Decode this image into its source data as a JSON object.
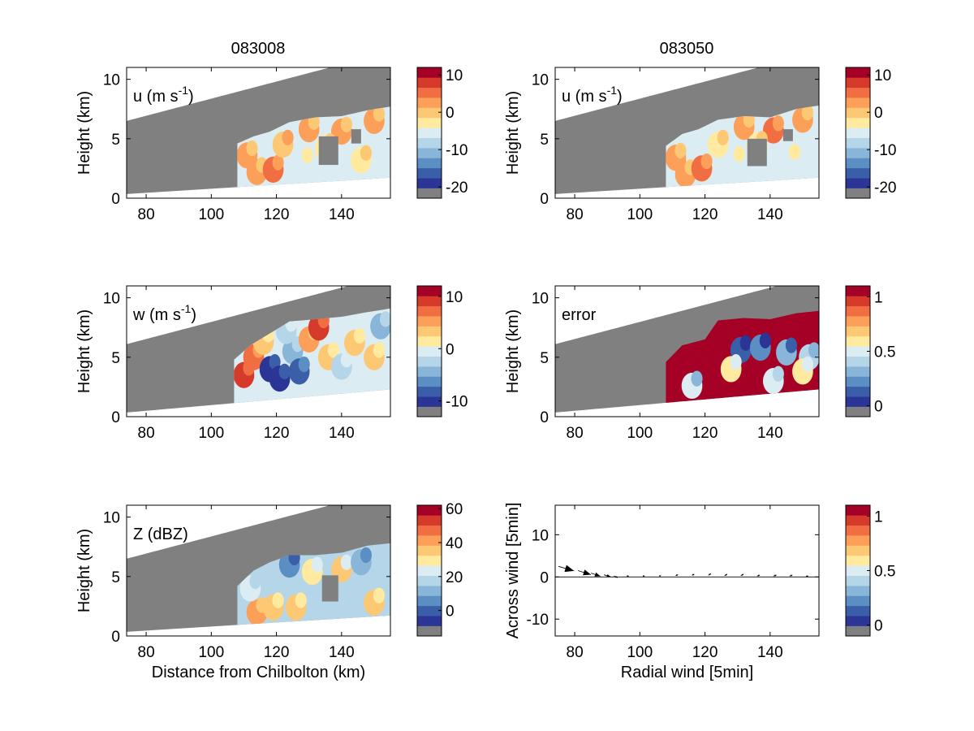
{
  "figure": {
    "left_title": "083008",
    "right_title": "083050"
  },
  "colors": {
    "missing": "#808080",
    "background": "#ffffff",
    "palette": [
      "#2b3595",
      "#3a5fa8",
      "#5b8ec2",
      "#89b6d8",
      "#b5d6e8",
      "#dcecf3",
      "#ffeaa0",
      "#fdc873",
      "#fb9f59",
      "#f06e42",
      "#d63a2a",
      "#a50026"
    ]
  },
  "chart_data": [
    {
      "id": "u-left",
      "type": "heatmap",
      "label": "u (m s",
      "label_sup": "-1",
      "label_close": ")",
      "xlim": [
        74,
        155
      ],
      "ylim": [
        0,
        11
      ],
      "xticks": [
        80,
        100,
        120,
        140
      ],
      "yticks": [
        0,
        5,
        10
      ],
      "xlabel": "",
      "ylabel": "Height (km)",
      "colorbar": {
        "ticks": [
          "10",
          "0",
          "-10",
          "-20"
        ],
        "tick_values": [
          10,
          0,
          -10,
          -20
        ],
        "range": [
          -23,
          12
        ]
      },
      "region": {
        "x_start": 108,
        "top": [
          [
            108,
            4.6
          ],
          [
            113,
            5.2
          ],
          [
            118,
            5.6
          ],
          [
            124,
            6.4
          ],
          [
            132,
            6.8
          ],
          [
            140,
            6.9
          ],
          [
            148,
            7.4
          ],
          [
            155,
            7.7
          ]
        ]
      },
      "blobs": [
        {
          "x": 114,
          "y": 2.2,
          "value": 2
        },
        {
          "x": 119,
          "y": 2.4,
          "value": 4
        },
        {
          "x": 111,
          "y": 3.6,
          "value": 1
        },
        {
          "x": 122,
          "y": 4.5,
          "value": -2
        },
        {
          "x": 130,
          "y": 5.8,
          "value": 1
        },
        {
          "x": 140,
          "y": 5.6,
          "value": 3
        },
        {
          "x": 150,
          "y": 6.5,
          "value": 3
        },
        {
          "x": 146,
          "y": 3.2,
          "value": -5
        },
        {
          "x": 128,
          "y": 3.0,
          "value": -7
        },
        {
          "x": 135,
          "y": 4.2,
          "value": -4
        }
      ],
      "gaps": [
        {
          "x": 133,
          "y": 2.8,
          "w": 6,
          "h": 2.4
        },
        {
          "x": 143,
          "y": 4.6,
          "w": 3,
          "h": 1.2
        }
      ]
    },
    {
      "id": "u-right",
      "type": "heatmap",
      "label": "u (m s",
      "label_sup": "-1",
      "label_close": ")",
      "xlim": [
        74,
        155
      ],
      "ylim": [
        0,
        11
      ],
      "xticks": [
        80,
        100,
        120,
        140
      ],
      "yticks": [
        0,
        5,
        10
      ],
      "xlabel": "",
      "ylabel": "Height (km)",
      "colorbar": {
        "ticks": [
          "10",
          "0",
          "-10",
          "-20"
        ],
        "tick_values": [
          10,
          0,
          -10,
          -20
        ],
        "range": [
          -23,
          12
        ]
      },
      "region": {
        "x_start": 108,
        "top": [
          [
            108,
            4.4
          ],
          [
            113,
            5.4
          ],
          [
            118,
            5.8
          ],
          [
            124,
            6.6
          ],
          [
            132,
            6.9
          ],
          [
            140,
            6.8
          ],
          [
            148,
            7.5
          ],
          [
            155,
            7.8
          ]
        ]
      },
      "blobs": [
        {
          "x": 114,
          "y": 2.0,
          "value": 3
        },
        {
          "x": 119,
          "y": 2.5,
          "value": 5
        },
        {
          "x": 111,
          "y": 3.4,
          "value": 1
        },
        {
          "x": 124,
          "y": 4.5,
          "value": -3
        },
        {
          "x": 132,
          "y": 6.0,
          "value": 2
        },
        {
          "x": 141,
          "y": 5.7,
          "value": 4
        },
        {
          "x": 150,
          "y": 6.6,
          "value": 2
        },
        {
          "x": 146,
          "y": 3.3,
          "value": -6
        },
        {
          "x": 129,
          "y": 3.1,
          "value": -6
        },
        {
          "x": 136,
          "y": 4.4,
          "value": -3
        }
      ],
      "gaps": [
        {
          "x": 133,
          "y": 2.7,
          "w": 6,
          "h": 2.3
        },
        {
          "x": 144,
          "y": 4.8,
          "w": 3,
          "h": 1.0
        }
      ]
    },
    {
      "id": "w-left",
      "type": "heatmap",
      "label": "w (m s",
      "label_sup": "-1",
      "label_close": ")",
      "xlim": [
        74,
        155
      ],
      "ylim": [
        0,
        11
      ],
      "xticks": [
        80,
        100,
        120,
        140
      ],
      "yticks": [
        0,
        5,
        10
      ],
      "xlabel": "",
      "ylabel": "Height (km)",
      "colorbar": {
        "ticks": [
          "10",
          "0",
          "-10"
        ],
        "tick_values": [
          10,
          0,
          -10
        ],
        "range": [
          -13,
          12
        ]
      },
      "region": {
        "x_start": 107,
        "top": [
          [
            107,
            4.8
          ],
          [
            112,
            6.0
          ],
          [
            118,
            7.0
          ],
          [
            124,
            8.0
          ],
          [
            132,
            8.2
          ],
          [
            140,
            8.4
          ],
          [
            148,
            8.8
          ],
          [
            155,
            9.1
          ]
        ]
      },
      "blobs": [
        {
          "x": 110,
          "y": 3.5,
          "value": 9
        },
        {
          "x": 113,
          "y": 5.0,
          "value": 6
        },
        {
          "x": 118,
          "y": 4.0,
          "value": -12
        },
        {
          "x": 121,
          "y": 3.2,
          "value": -11
        },
        {
          "x": 125,
          "y": 5.5,
          "value": -6
        },
        {
          "x": 127,
          "y": 3.8,
          "value": -9
        },
        {
          "x": 130,
          "y": 6.5,
          "value": 4
        },
        {
          "x": 133,
          "y": 7.5,
          "value": 9
        },
        {
          "x": 136,
          "y": 5.0,
          "value": 2
        },
        {
          "x": 140,
          "y": 4.2,
          "value": -4
        },
        {
          "x": 144,
          "y": 6.2,
          "value": 3
        },
        {
          "x": 150,
          "y": 5.0,
          "value": 2
        },
        {
          "x": 152,
          "y": 7.6,
          "value": -5
        },
        {
          "x": 123,
          "y": 7.2,
          "value": -3
        },
        {
          "x": 116,
          "y": 6.3,
          "value": 3
        }
      ],
      "gaps": []
    },
    {
      "id": "error-right",
      "type": "heatmap",
      "label": "error",
      "label_sup": "",
      "label_close": "",
      "xlim": [
        74,
        155
      ],
      "ylim": [
        0,
        11
      ],
      "xticks": [
        80,
        100,
        120,
        140
      ],
      "yticks": [
        0,
        5,
        10
      ],
      "xlabel": "",
      "ylabel": "Height (km)",
      "colorbar": {
        "ticks": [
          "1",
          "0.5",
          "0"
        ],
        "tick_values": [
          1,
          0.5,
          0
        ],
        "range": [
          -0.1,
          1.1
        ]
      },
      "region": {
        "x_start": 108,
        "top": [
          [
            108,
            4.6
          ],
          [
            113,
            6.0
          ],
          [
            120,
            6.5
          ],
          [
            124,
            8.1
          ],
          [
            132,
            8.3
          ],
          [
            140,
            8.2
          ],
          [
            148,
            8.7
          ],
          [
            155,
            8.9
          ]
        ],
        "base_value": 1.05
      },
      "blobs": [
        {
          "x": 131,
          "y": 5.6,
          "value": 0.05
        },
        {
          "x": 137,
          "y": 5.8,
          "value": 0.1
        },
        {
          "x": 145,
          "y": 5.4,
          "value": 0.2
        },
        {
          "x": 152,
          "y": 5.0,
          "value": 0.35
        },
        {
          "x": 128,
          "y": 4.0,
          "value": 0.6
        },
        {
          "x": 141,
          "y": 3.0,
          "value": 0.45
        },
        {
          "x": 116,
          "y": 2.6,
          "value": 0.4
        },
        {
          "x": 150,
          "y": 3.8,
          "value": 0.6
        }
      ],
      "gaps": []
    },
    {
      "id": "z-left",
      "type": "heatmap",
      "label": "Z (dBZ)",
      "label_sup": "",
      "label_close": "",
      "xlim": [
        74,
        155
      ],
      "ylim": [
        0,
        11
      ],
      "xticks": [
        80,
        100,
        120,
        140
      ],
      "yticks": [
        0,
        5,
        10
      ],
      "xlabel": "Distance from Chilbolton (km)",
      "ylabel": "Height (km)",
      "colorbar": {
        "ticks": [
          "60",
          "40",
          "20",
          "0"
        ],
        "tick_values": [
          60,
          40,
          20,
          0
        ],
        "range": [
          -15,
          62
        ]
      },
      "region": {
        "x_start": 108,
        "top": [
          [
            108,
            4.2
          ],
          [
            113,
            5.5
          ],
          [
            118,
            6.2
          ],
          [
            124,
            6.8
          ],
          [
            132,
            6.8
          ],
          [
            140,
            7.0
          ],
          [
            148,
            7.6
          ],
          [
            155,
            7.8
          ]
        ],
        "base_value": 14
      },
      "blobs": [
        {
          "x": 114,
          "y": 2.0,
          "value": 40
        },
        {
          "x": 119,
          "y": 2.4,
          "value": 36
        },
        {
          "x": 112,
          "y": 4.0,
          "value": 22
        },
        {
          "x": 126,
          "y": 2.4,
          "value": 32
        },
        {
          "x": 131,
          "y": 5.4,
          "value": 28
        },
        {
          "x": 140,
          "y": 5.6,
          "value": 30
        },
        {
          "x": 150,
          "y": 2.8,
          "value": 34
        },
        {
          "x": 146,
          "y": 6.2,
          "value": 8
        },
        {
          "x": 124,
          "y": 6.0,
          "value": 4
        }
      ],
      "gaps": [
        {
          "x": 134,
          "y": 2.9,
          "w": 5,
          "h": 2.2
        }
      ]
    },
    {
      "id": "wind-right",
      "type": "quiver",
      "label": "",
      "xlim": [
        74,
        155
      ],
      "ylim": [
        -14,
        17
      ],
      "xticks": [
        80,
        100,
        120,
        140
      ],
      "yticks": [
        -10,
        0,
        10
      ],
      "xlabel": "Radial wind [5min]",
      "ylabel": "Across wind [5min]",
      "colorbar": {
        "ticks": [
          "1",
          "0.5",
          "0"
        ],
        "tick_values": [
          1,
          0.5,
          0
        ],
        "range": [
          -0.1,
          1.1
        ]
      },
      "arrows": [
        {
          "x": 75,
          "y": 2.5,
          "u": 4.0,
          "v": -0.9
        },
        {
          "x": 81,
          "y": 1.5,
          "u": 3.3,
          "v": -0.8
        },
        {
          "x": 85,
          "y": 0.9,
          "u": 2.4,
          "v": -0.6
        },
        {
          "x": 89,
          "y": 0.5,
          "u": 1.7,
          "v": -0.4
        },
        {
          "x": 92,
          "y": 0.2,
          "u": 1.0,
          "v": -0.3
        },
        {
          "x": 96,
          "y": 0.2,
          "u": 0.5,
          "v": 0.0
        },
        {
          "x": 101,
          "y": 0.2,
          "u": 0.4,
          "v": 0.0
        },
        {
          "x": 106,
          "y": 0.2,
          "u": 0.4,
          "v": 0.1
        },
        {
          "x": 111,
          "y": 0.3,
          "u": 0.6,
          "v": 0.2
        },
        {
          "x": 116,
          "y": 0.4,
          "u": 0.6,
          "v": 0.2
        },
        {
          "x": 121,
          "y": 0.4,
          "u": 0.7,
          "v": 0.3
        },
        {
          "x": 126,
          "y": 0.3,
          "u": 0.7,
          "v": 0.3
        },
        {
          "x": 131,
          "y": 0.3,
          "u": 0.7,
          "v": 0.3
        },
        {
          "x": 136,
          "y": 0.2,
          "u": 0.7,
          "v": 0.2
        },
        {
          "x": 141,
          "y": 0.2,
          "u": 0.8,
          "v": 0.2
        },
        {
          "x": 146,
          "y": 0.2,
          "u": 0.7,
          "v": 0.2
        },
        {
          "x": 151,
          "y": 0.1,
          "u": 0.6,
          "v": 0.1
        }
      ]
    }
  ]
}
